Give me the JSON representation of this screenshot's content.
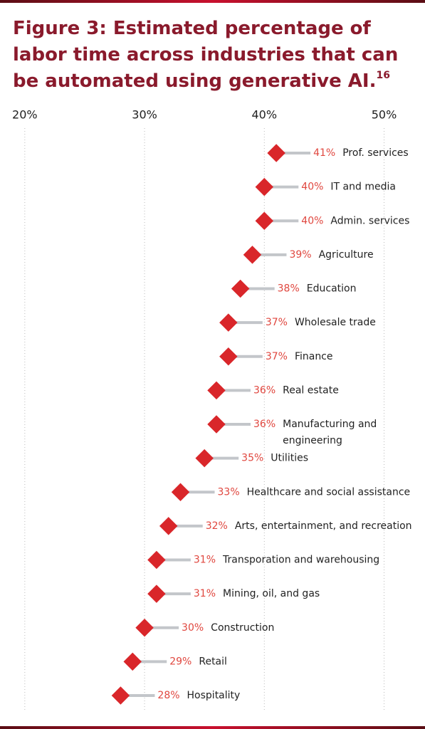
{
  "chart_data": {
    "type": "dot",
    "title": "Figure 3: Estimated percentage of labor time across industries that can be automated using generative AI.",
    "title_footnote": "16",
    "categories": [
      "Prof. services",
      "IT and media",
      "Admin. services",
      "Agriculture",
      "Education",
      "Wholesale trade",
      "Finance",
      "Real estate",
      "Manufacturing and engineering",
      "Utilities",
      "Healthcare and social assistance",
      "Arts, entertainment, and recreation",
      "Transporation and warehousing",
      "Mining, oil, and gas",
      "Construction",
      "Retail",
      "Hospitality"
    ],
    "values": [
      41,
      40,
      40,
      39,
      38,
      37,
      37,
      36,
      36,
      35,
      33,
      32,
      31,
      31,
      30,
      29,
      28
    ],
    "value_labels": [
      "41%",
      "40%",
      "40%",
      "39%",
      "38%",
      "37%",
      "37%",
      "36%",
      "36%",
      "35%",
      "33%",
      "32%",
      "31%",
      "31%",
      "30%",
      "29%",
      "28%"
    ],
    "color": "#d9262a",
    "xlim": [
      19,
      53
    ],
    "xticks": [
      {
        "value": 20,
        "label": "20%"
      },
      {
        "value": 30,
        "label": "30%"
      },
      {
        "value": 40,
        "label": "40%"
      },
      {
        "value": 50,
        "label": "50%"
      }
    ],
    "grid": true
  }
}
